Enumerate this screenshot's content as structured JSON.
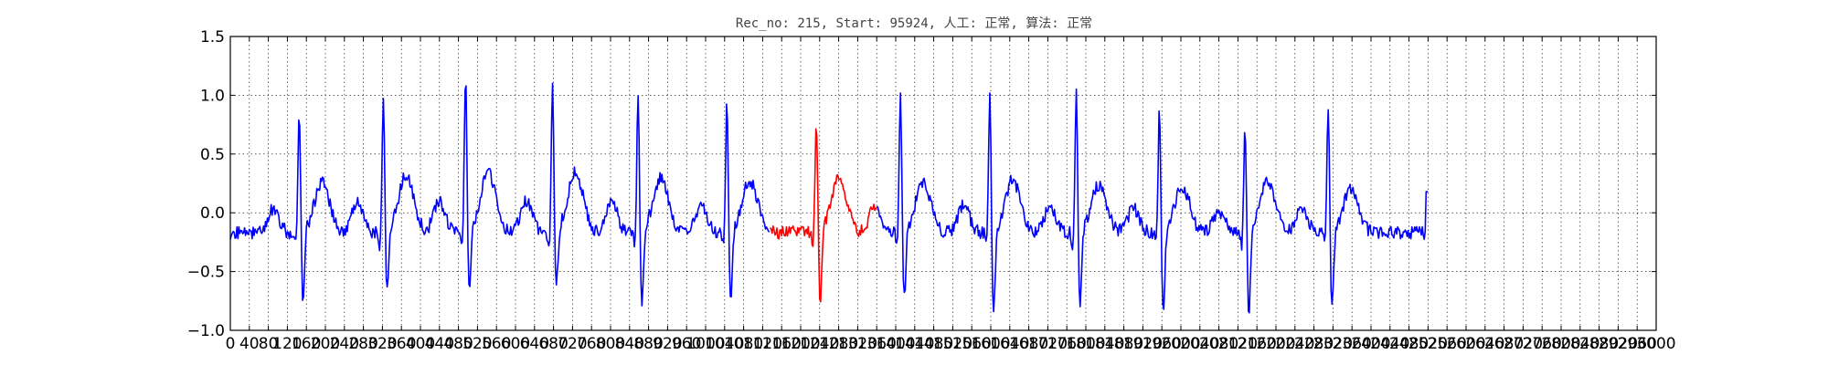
{
  "chart_data": {
    "type": "line",
    "title": "Rec_no: 215, Start: 95924, 人工: 正常, 算法: 正常",
    "xlabel": "",
    "ylabel": "",
    "xlim": [
      0,
      3000
    ],
    "ylim": [
      -1.0,
      1.5
    ],
    "grid": true,
    "grid_style": "dotted",
    "yticks": [
      -1.0,
      -0.5,
      0.0,
      0.5,
      1.0,
      1.5
    ],
    "ytick_labels": [
      "−1.0",
      "−0.5",
      "0.0",
      "0.5",
      "1.0",
      "1.5"
    ],
    "xticks": [
      0,
      40,
      80,
      120,
      160,
      200,
      240,
      280,
      320,
      360,
      400,
      440,
      480,
      520,
      560,
      600,
      640,
      680,
      720,
      760,
      800,
      840,
      880,
      920,
      960,
      1000,
      1040,
      1080,
      1120,
      1160,
      1200,
      1240,
      1280,
      1320,
      1360,
      1400,
      1440,
      1480,
      1520,
      1560,
      1600,
      1640,
      1680,
      1720,
      1760,
      1800,
      1840,
      1880,
      1920,
      1960,
      2000,
      2040,
      2080,
      2120,
      2160,
      2200,
      2240,
      2280,
      2320,
      2360,
      2400,
      2440,
      2480,
      2520,
      2560,
      2600,
      2640,
      2680,
      2720,
      2760,
      2800,
      2840,
      2880,
      2920,
      2960,
      3000
    ],
    "xtick_labels": [
      "0",
      "40",
      "80",
      "120",
      "160",
      "200",
      "240",
      "280",
      "320",
      "360",
      "400",
      "440",
      "480",
      "520",
      "560",
      "600",
      "640",
      "680",
      "720",
      "760",
      "800",
      "840",
      "880",
      "920",
      "960",
      "1000",
      "1040",
      "1080",
      "1120",
      "1160",
      "1200",
      "1240",
      "1280",
      "1320",
      "1360",
      "1400",
      "1440",
      "1480",
      "1520",
      "1560",
      "1600",
      "1640",
      "1680",
      "1720",
      "1760",
      "1800",
      "1840",
      "1880",
      "1920",
      "1960",
      "2000",
      "2040",
      "2080",
      "2120",
      "2160",
      "2200",
      "2240",
      "2280",
      "2320",
      "2360",
      "2400",
      "2440",
      "2480",
      "2520",
      "2560",
      "2600",
      "2640",
      "2680",
      "2720",
      "2760",
      "2800",
      "2840",
      "2880",
      "2920",
      "2960",
      "3000"
    ],
    "x_end": 2520,
    "baseline": -0.17,
    "series": [
      {
        "color": "#0000ff",
        "kind": "signal",
        "beats": [
          {
            "r": 145,
            "r_amp": 0.87,
            "s_amp": -0.83,
            "p_amp": 0.22,
            "t_amp": 0.28
          },
          {
            "r": 322,
            "r_amp": 1.0,
            "s_amp": -0.73,
            "p_amp": 0.28,
            "t_amp": 0.35
          },
          {
            "r": 495,
            "r_amp": 1.21,
            "s_amp": -0.68,
            "p_amp": 0.3,
            "t_amp": 0.37
          },
          {
            "r": 678,
            "r_amp": 1.11,
            "s_amp": -0.69,
            "p_amp": 0.3,
            "t_amp": 0.37
          },
          {
            "r": 858,
            "r_amp": 1.05,
            "s_amp": -0.82,
            "p_amp": 0.28,
            "t_amp": 0.33
          },
          {
            "r": 1045,
            "r_amp": 0.97,
            "s_amp": -0.83,
            "p_amp": 0.25,
            "t_amp": 0.3
          },
          {
            "r": 1410,
            "r_amp": 1.0,
            "s_amp": -0.77,
            "p_amp": 0.22,
            "t_amp": 0.28
          },
          {
            "r": 1598,
            "r_amp": 1.02,
            "s_amp": -0.92,
            "p_amp": 0.26,
            "t_amp": 0.3
          },
          {
            "r": 1780,
            "r_amp": 1.07,
            "s_amp": -0.85,
            "p_amp": 0.25,
            "t_amp": 0.26
          },
          {
            "r": 1955,
            "r_amp": 0.92,
            "s_amp": -0.95,
            "p_amp": 0.23,
            "t_amp": 0.24
          },
          {
            "r": 2135,
            "r_amp": 0.77,
            "s_amp": -0.91,
            "p_amp": 0.2,
            "t_amp": 0.3
          },
          {
            "r": 2310,
            "r_amp": 0.9,
            "s_amp": -0.89,
            "p_amp": 0.22,
            "t_amp": 0.23
          }
        ]
      },
      {
        "color": "#ff0000",
        "kind": "highlight",
        "x_range": [
          1135,
          1360
        ],
        "beats": [
          {
            "r": 1233,
            "r_amp": 0.84,
            "s_amp": -0.8,
            "p_amp": 0.02,
            "t_amp": 0.31
          }
        ]
      }
    ],
    "end_value": 0.18
  }
}
